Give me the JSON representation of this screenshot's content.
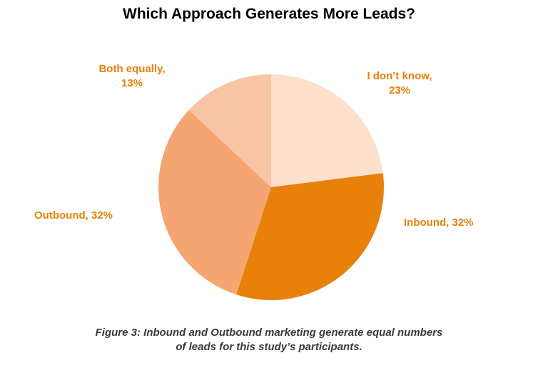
{
  "chart_data": {
    "type": "pie",
    "title": "Which Approach Generates More Leads?",
    "slices": [
      {
        "name": "I don't know",
        "value": 23,
        "color": "#FDE0CC",
        "label_line1": "I don’t know,",
        "label_line2": "23%"
      },
      {
        "name": "Inbound",
        "value": 32,
        "color": "#E8800A",
        "label_line1": "Inbound, 32%",
        "label_line2": ""
      },
      {
        "name": "Outbound",
        "value": 32,
        "color": "#F5A572",
        "label_line1": "Outbound, 32%",
        "label_line2": ""
      },
      {
        "name": "Both equally",
        "value": 13,
        "color": "#F9C4A4",
        "label_line1": "Both equally,",
        "label_line2": "13%"
      }
    ],
    "label_color": "#E8800A"
  },
  "caption": {
    "line1": "Figure 3: Inbound and Outbound marketing generate equal numbers",
    "line2": "of leads for this study’s participants."
  }
}
